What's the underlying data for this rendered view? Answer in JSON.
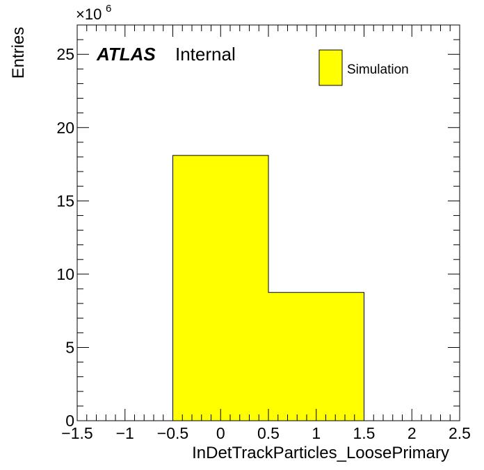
{
  "chart_data": {
    "type": "bar",
    "histogram": true,
    "bin_edges": [
      -0.5,
      0.5,
      1.5
    ],
    "values": [
      18100000,
      8750000
    ],
    "xlabel": "InDetTrackParticles_LoosePrimary",
    "ylabel": "Entries",
    "xlim": [
      -1.5,
      2.5
    ],
    "ylim": [
      0,
      27000000
    ],
    "x_ticks": [
      -1.5,
      -1,
      -0.5,
      0,
      0.5,
      1,
      1.5,
      2,
      2.5
    ],
    "x_tick_labels": [
      "−1.5",
      "−1",
      "−0.5",
      "0",
      "0.5",
      "1",
      "1.5",
      "2",
      "2.5"
    ],
    "y_ticks": [
      0,
      5000000,
      10000000,
      15000000,
      20000000,
      25000000
    ],
    "y_tick_labels": [
      "0",
      "5",
      "10",
      "15",
      "20",
      "25"
    ],
    "y_multiplier_base": "×10",
    "y_multiplier_exponent": "6",
    "experiment_label": "ATLAS",
    "status_label": "Internal",
    "legend": {
      "entries": [
        {
          "name": "Simulation",
          "color": "#ffff00"
        }
      ],
      "placement": "top-right"
    },
    "fill_color": "#ffff00",
    "line_color": "#000000",
    "grid": false
  }
}
